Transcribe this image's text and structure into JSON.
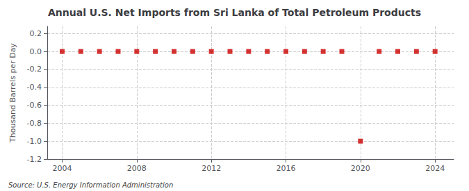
{
  "chart_data": {
    "type": "scatter",
    "title": "Annual U.S. Net Imports from Sri Lanka of Total Petroleum Products",
    "ylabel": "Thousand Barrels per Day",
    "annotations": [
      "Source: U.S. Energy Information Administration"
    ],
    "x": [
      2004,
      2005,
      2006,
      2007,
      2008,
      2009,
      2010,
      2011,
      2012,
      2013,
      2014,
      2015,
      2016,
      2017,
      2018,
      2019,
      2020,
      2021,
      2022,
      2023,
      2024
    ],
    "values": [
      0,
      0,
      0,
      0,
      0,
      0,
      0,
      0,
      0,
      0,
      0,
      0,
      0,
      0,
      0,
      0,
      -1,
      0,
      0,
      0,
      0
    ],
    "color": "#cc0000",
    "marker": "square",
    "xlim": [
      2003.2,
      2025.0
    ],
    "xticks": [
      2004,
      2008,
      2012,
      2016,
      2020,
      2024
    ],
    "ylim": [
      -1.2,
      0.28
    ],
    "yticks": [
      0.2,
      {
        "value": 0,
        "label": "0.0"
      },
      -0.2,
      -0.4,
      -0.6,
      -0.8,
      {
        "value": -1,
        "label": "-1.0"
      },
      -1.2
    ],
    "grid": true
  }
}
